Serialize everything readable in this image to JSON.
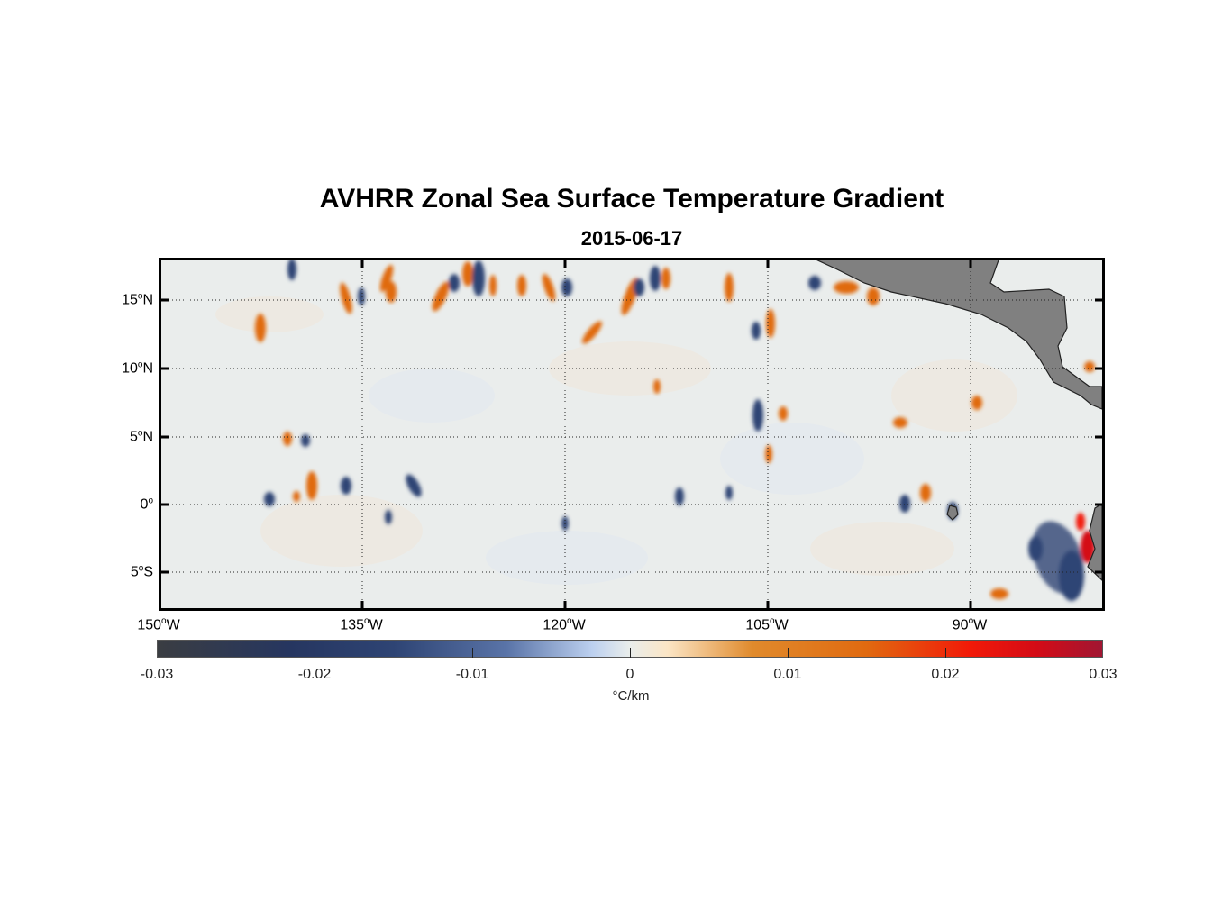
{
  "title": "AVHRR Zonal Sea Surface Temperature Gradient",
  "subtitle": "2015-06-17",
  "lat_labels": [
    {
      "deg": "15",
      "hemi": "N"
    },
    {
      "deg": "10",
      "hemi": "N"
    },
    {
      "deg": "5",
      "hemi": "N"
    },
    {
      "deg": "0",
      "hemi": ""
    },
    {
      "deg": "5",
      "hemi": "S"
    }
  ],
  "lon_labels": [
    {
      "deg": "150",
      "hemi": "W"
    },
    {
      "deg": "135",
      "hemi": "W"
    },
    {
      "deg": "120",
      "hemi": "W"
    },
    {
      "deg": "105",
      "hemi": "W"
    },
    {
      "deg": "90",
      "hemi": "W"
    }
  ],
  "colorbar": {
    "ticks": [
      "-0.03",
      "-0.02",
      "-0.01",
      "0",
      "0.01",
      "0.02",
      "0.03"
    ],
    "units": "°C/km",
    "min": -0.03,
    "max": 0.03
  },
  "colors": {
    "land": "#808080",
    "ocean_neutral": "#e9ecec",
    "negative": "#2e4474",
    "positive": "#e06a10",
    "extreme_positive": "#d40b16"
  }
}
